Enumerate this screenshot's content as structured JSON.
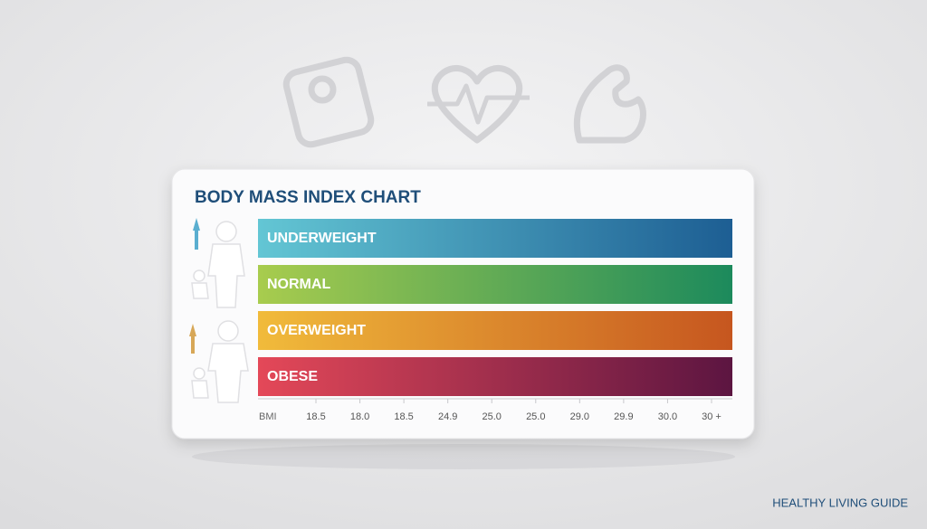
{
  "header": {
    "title": "BODY MASS INDEX CHART"
  },
  "bars": [
    {
      "label": "UNDERWEIGHT"
    },
    {
      "label": "NORMAL"
    },
    {
      "label": "OVERWEIGHT"
    },
    {
      "label": "OBESE"
    }
  ],
  "scale": {
    "label": "BMI",
    "ticks": [
      "18.5",
      "18.0",
      "18.5",
      "24.9",
      "25.0",
      "25.0",
      "29.0",
      "29.9",
      "30.0",
      "30 +"
    ]
  },
  "footer": {
    "text": "HEALTHY LIVING GUIDE"
  }
}
